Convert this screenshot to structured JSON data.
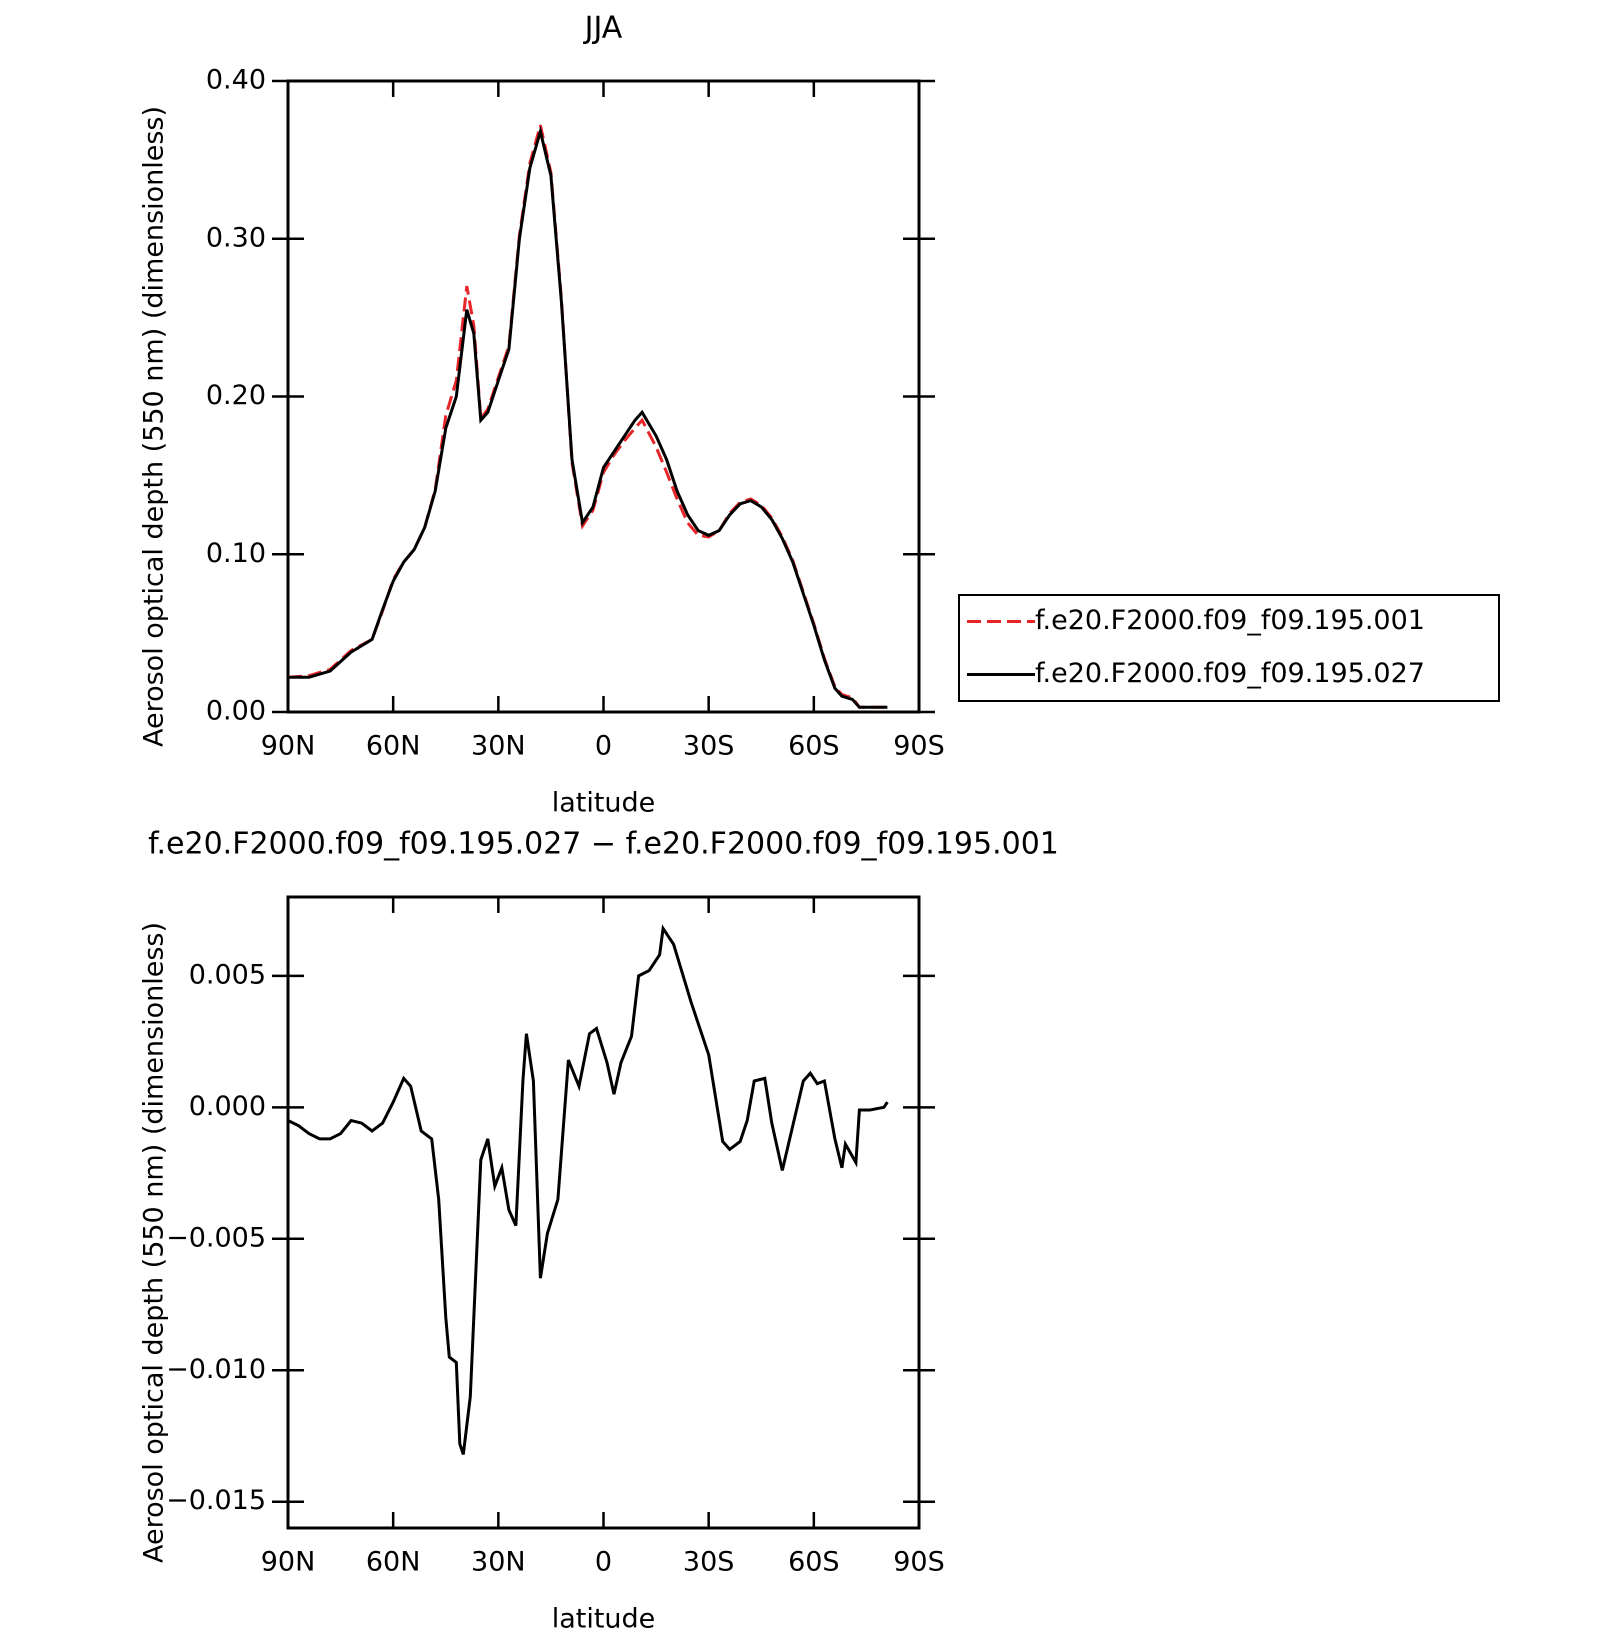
{
  "chart_data": [
    {
      "type": "line",
      "title": "JJA",
      "xlabel": "latitude",
      "ylabel": "Aerosol optical depth (550 nm) (dimensionless)",
      "xlim": [
        90,
        -90
      ],
      "xticks": [
        {
          "value": 90,
          "label": "90N"
        },
        {
          "value": 60,
          "label": "60N"
        },
        {
          "value": 30,
          "label": "30N"
        },
        0,
        {
          "value": -30,
          "label": "30S"
        },
        {
          "value": -60,
          "label": "60S"
        },
        {
          "value": -90,
          "label": "90S"
        }
      ],
      "ylim": [
        0,
        0.4
      ],
      "yticks": [
        {
          "value": 0,
          "label": "0.00"
        },
        {
          "value": 0.1,
          "label": "0.10"
        },
        {
          "value": 0.2,
          "label": "0.20"
        },
        {
          "value": 0.3,
          "label": "0.30"
        },
        {
          "value": 0.4,
          "label": "0.40"
        }
      ],
      "legend": "right",
      "x": [
        90,
        84,
        78,
        72,
        66,
        63,
        60,
        57,
        54,
        51,
        48,
        45,
        42,
        39,
        37,
        35,
        33,
        30,
        27,
        24,
        21,
        18,
        15,
        12,
        9,
        6,
        3,
        0,
        -3,
        -6,
        -9,
        -11,
        -15,
        -18,
        -21,
        -24,
        -27,
        -30,
        -33,
        -36,
        -39,
        -42,
        -45,
        -48,
        -51,
        -54,
        -57,
        -60,
        -63,
        -66,
        -68,
        -71,
        -73,
        -76,
        -81
      ],
      "series": [
        {
          "name": "f.e20.F2000.f09_f09.195.001",
          "color": "#e8262a",
          "line_style": "dashed",
          "values": [
            0.022,
            0.023,
            0.027,
            0.039,
            0.046,
            0.064,
            0.084,
            0.095,
            0.103,
            0.117,
            0.141,
            0.188,
            0.21,
            0.27,
            0.245,
            0.186,
            0.192,
            0.212,
            0.232,
            0.302,
            0.348,
            0.372,
            0.342,
            0.262,
            0.158,
            0.118,
            0.128,
            0.152,
            0.163,
            0.172,
            0.18,
            0.185,
            0.168,
            0.152,
            0.135,
            0.12,
            0.112,
            0.111,
            0.115,
            0.126,
            0.133,
            0.135,
            0.131,
            0.123,
            0.111,
            0.096,
            0.076,
            0.056,
            0.034,
            0.016,
            0.011,
            0.009,
            0.003,
            0.003,
            0.003
          ]
        },
        {
          "name": "f.e20.F2000.f09_f09.195.027",
          "color": "#000000",
          "line_style": "solid",
          "values": [
            0.022,
            0.022,
            0.026,
            0.038,
            0.046,
            0.065,
            0.083,
            0.095,
            0.103,
            0.117,
            0.14,
            0.18,
            0.2,
            0.255,
            0.24,
            0.185,
            0.19,
            0.21,
            0.23,
            0.3,
            0.345,
            0.368,
            0.34,
            0.26,
            0.16,
            0.12,
            0.13,
            0.155,
            0.165,
            0.175,
            0.185,
            0.19,
            0.175,
            0.16,
            0.14,
            0.125,
            0.115,
            0.112,
            0.115,
            0.125,
            0.132,
            0.134,
            0.13,
            0.122,
            0.11,
            0.095,
            0.075,
            0.055,
            0.033,
            0.015,
            0.01,
            0.008,
            0.003,
            0.003,
            0.003
          ]
        }
      ]
    },
    {
      "type": "line",
      "title": "f.e20.F2000.f09_f09.195.027 − f.e20.F2000.f09_f09.195.001",
      "xlabel": "latitude",
      "ylabel": "Aerosol optical depth (550 nm) (dimensionless)",
      "xlim": [
        90,
        -90
      ],
      "xticks": [
        {
          "value": 90,
          "label": "90N"
        },
        {
          "value": 60,
          "label": "60N"
        },
        {
          "value": 30,
          "label": "30N"
        },
        0,
        {
          "value": -30,
          "label": "30S"
        },
        {
          "value": -60,
          "label": "60S"
        },
        {
          "value": -90,
          "label": "90S"
        }
      ],
      "ylim": [
        -0.016,
        0.008
      ],
      "yticks": [
        {
          "value": -0.015,
          "label": "−0.015"
        },
        {
          "value": -0.01,
          "label": "−0.010"
        },
        {
          "value": -0.005,
          "label": "−0.005"
        },
        {
          "value": 0,
          "label": "0.000"
        },
        {
          "value": 0.005,
          "label": "0.005"
        }
      ],
      "color": "#000000",
      "x": [
        90,
        87,
        84,
        81,
        78,
        75,
        72,
        69,
        66,
        63,
        60,
        57,
        55,
        52,
        49,
        47,
        45,
        44,
        42,
        41,
        40,
        38,
        35,
        33,
        31,
        29,
        27,
        25,
        23,
        22,
        20,
        18,
        16,
        13,
        10,
        7,
        4,
        2,
        -1,
        -3,
        -5,
        -8,
        -10,
        -13,
        -16,
        -17,
        -20,
        -25,
        -30,
        -34,
        -36,
        -39,
        -41,
        -43,
        -46,
        -48,
        -51,
        -54,
        -57,
        -59,
        -61,
        -63,
        -66,
        -68,
        -69,
        -72,
        -73,
        -76,
        -80,
        -81
      ],
      "values": [
        -0.0005,
        -0.0007,
        -0.001,
        -0.0012,
        -0.0012,
        -0.001,
        -0.0005,
        -0.0006,
        -0.0009,
        -0.0006,
        0.0002,
        0.0011,
        0.0008,
        -0.0009,
        -0.0012,
        -0.0035,
        -0.008,
        -0.0095,
        -0.0097,
        -0.0128,
        -0.0132,
        -0.011,
        -0.002,
        -0.0012,
        -0.003,
        -0.0023,
        -0.0039,
        -0.0045,
        0.001,
        0.0028,
        0.001,
        -0.0065,
        -0.0048,
        -0.0035,
        0.0018,
        0.0008,
        0.0028,
        0.003,
        0.0017,
        0.0005,
        0.0017,
        0.0027,
        0.005,
        0.0052,
        0.0058,
        0.0068,
        0.0062,
        0.004,
        0.002,
        -0.0013,
        -0.0016,
        -0.0013,
        -0.0005,
        0.001,
        0.0011,
        -0.0006,
        -0.0024,
        -0.0007,
        0.001,
        0.0013,
        0.0009,
        0.001,
        -0.0012,
        -0.0023,
        -0.0014,
        -0.0021,
        -0.0001,
        -0.0001,
        0,
        0.0002
      ]
    }
  ]
}
